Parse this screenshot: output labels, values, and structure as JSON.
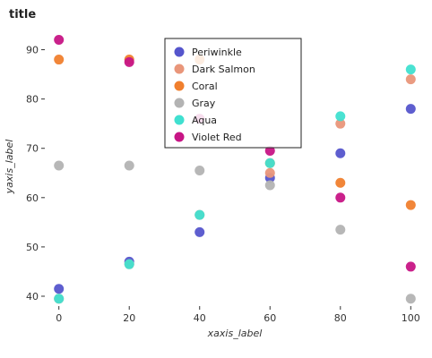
{
  "chart_data": {
    "type": "scatter",
    "title": "title",
    "xlabel": "xaxis_label",
    "ylabel": "yaxis_label",
    "xlim": [
      -4,
      104
    ],
    "ylim": [
      38,
      95
    ],
    "xticks": [
      0,
      20,
      40,
      60,
      80,
      100
    ],
    "yticks": [
      40,
      50,
      60,
      70,
      80,
      90
    ],
    "grid": false,
    "legend_position": "top-center",
    "x": [
      0,
      20,
      40,
      60,
      80,
      100
    ],
    "series": [
      {
        "name": "Periwinkle",
        "color": "#5555cc",
        "values": [
          41.5,
          47,
          53,
          64,
          69,
          78
        ]
      },
      {
        "name": "Dark Salmon",
        "color": "#e9967a",
        "values": [
          39.5,
          46.5,
          56.5,
          65,
          75,
          84
        ]
      },
      {
        "name": "Coral",
        "color": "#f07f2e",
        "values": [
          88,
          88,
          88,
          67,
          63,
          58.5
        ]
      },
      {
        "name": "Gray",
        "color": "#b3b3b3",
        "values": [
          66.5,
          66.5,
          65.5,
          62.5,
          53.5,
          39.5
        ]
      },
      {
        "name": "Aqua",
        "color": "#40e0d0",
        "values": [
          39.5,
          46.5,
          56.5,
          67,
          76.5,
          86
        ]
      },
      {
        "name": "Violet Red",
        "color": "#c71585",
        "values": [
          92,
          87.5,
          76,
          69.5,
          60,
          46
        ]
      }
    ]
  }
}
